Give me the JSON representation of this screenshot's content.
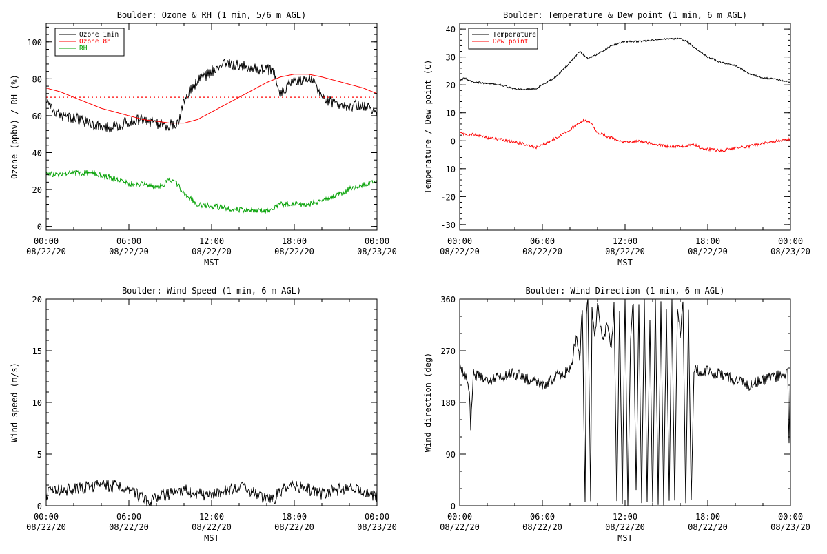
{
  "chart_data": [
    {
      "type": "line",
      "title": "Boulder: Ozone & RH (1 min, 5/6 m AGL)",
      "xlabel": "MST",
      "ylabel": "Ozone (ppbv) / RH (%)",
      "x_unit": "hours since 00:00 08/22/20 MST",
      "xlim": [
        0,
        24
      ],
      "ylim": [
        -2,
        110
      ],
      "y_ticks": [
        0,
        20,
        40,
        60,
        80,
        100
      ],
      "x_ticks": [
        {
          "x": 0,
          "time": "00:00",
          "date": "08/22/20"
        },
        {
          "x": 6,
          "time": "06:00",
          "date": "08/22/20"
        },
        {
          "x": 12,
          "time": "12:00",
          "date": "08/22/20"
        },
        {
          "x": 18,
          "time": "18:00",
          "date": "08/22/20"
        },
        {
          "x": 24,
          "time": "00:00",
          "date": "08/23/20"
        }
      ],
      "legend_position": "top-left",
      "reference_line": {
        "y": 70,
        "color": "#ff0000",
        "style": "dotted"
      },
      "series": [
        {
          "name": "Ozone 1min",
          "color": "#000000",
          "noise": 3,
          "x": [
            0,
            0.5,
            1,
            2,
            3,
            4,
            5,
            6,
            7,
            8,
            8.7,
            9.3,
            9.6,
            10,
            10.5,
            11,
            11.5,
            12,
            12.5,
            13,
            13.5,
            14,
            14.5,
            15,
            15.5,
            16,
            16.5,
            16.8,
            17,
            17.5,
            18,
            18.5,
            19,
            19.5,
            20,
            20.5,
            21,
            21.5,
            22,
            22.5,
            23,
            23.5,
            24
          ],
          "y": [
            68,
            64,
            60,
            59,
            56,
            54,
            54,
            57,
            58,
            56,
            55,
            55,
            56,
            68,
            74,
            79,
            81,
            84,
            86,
            89,
            88,
            87,
            87,
            86,
            85,
            85,
            84,
            74,
            73,
            76,
            78,
            79,
            80,
            79,
            70,
            68,
            66,
            66,
            65,
            66,
            65,
            64,
            62
          ]
        },
        {
          "name": "Ozone 8h",
          "color": "#ff0000",
          "noise": 0,
          "x": [
            0,
            1,
            2,
            3,
            4,
            5,
            6,
            7,
            8,
            9,
            10,
            11,
            12,
            13,
            14,
            15,
            16,
            17,
            18,
            19,
            20,
            21,
            22,
            23,
            24
          ],
          "y": [
            75,
            73,
            70,
            67,
            64,
            62,
            60,
            58,
            57,
            56,
            56,
            58,
            62,
            66,
            70,
            74,
            78,
            81,
            82.5,
            82.5,
            81,
            79,
            77,
            75,
            72
          ]
        },
        {
          "name": "RH",
          "color": "#00a000",
          "noise": 1.5,
          "x": [
            0,
            0.5,
            1,
            2,
            3,
            4,
            5,
            6,
            7,
            8,
            9,
            9.5,
            10,
            10.5,
            11,
            12,
            13,
            14,
            15,
            16,
            16.5,
            17,
            18,
            19,
            20,
            21,
            22,
            23,
            24
          ],
          "y": [
            30,
            28,
            28,
            29,
            29,
            28,
            26,
            23,
            23,
            21,
            25,
            23,
            18,
            15,
            12,
            11,
            10,
            9,
            8.5,
            8.5,
            10,
            12,
            12,
            12,
            14,
            17,
            20,
            23,
            25
          ]
        }
      ]
    },
    {
      "type": "line",
      "title": "Boulder: Temperature & Dew point (1 min, 6 m AGL)",
      "xlabel": "MST",
      "ylabel": "Temperature / Dew point (C)",
      "x_unit": "hours since 00:00 08/22/20 MST",
      "xlim": [
        0,
        24
      ],
      "ylim": [
        -32,
        42
      ],
      "y_ticks": [
        -30,
        -20,
        -10,
        0,
        10,
        20,
        30,
        40
      ],
      "x_ticks": [
        {
          "x": 0,
          "time": "00:00",
          "date": "08/22/20"
        },
        {
          "x": 6,
          "time": "06:00",
          "date": "08/22/20"
        },
        {
          "x": 12,
          "time": "12:00",
          "date": "08/22/20"
        },
        {
          "x": 18,
          "time": "18:00",
          "date": "08/22/20"
        },
        {
          "x": 24,
          "time": "00:00",
          "date": "08/23/20"
        }
      ],
      "legend_position": "top-left",
      "series": [
        {
          "name": "Temperature",
          "color": "#000000",
          "noise": 0.3,
          "x": [
            0,
            0.3,
            1,
            2,
            3,
            4,
            5,
            5.5,
            6,
            7,
            8,
            8.7,
            9.3,
            10,
            11,
            12,
            13,
            14,
            15,
            16,
            16.5,
            17,
            18,
            19,
            20,
            21,
            22,
            23,
            24
          ],
          "y": [
            21,
            22.5,
            21,
            20.5,
            20,
            18.5,
            18.5,
            18.5,
            20,
            23,
            28,
            32,
            29.5,
            31,
            34,
            35.5,
            35.5,
            36,
            36.5,
            36.5,
            35.5,
            33.5,
            30,
            28,
            27,
            24,
            22.5,
            22,
            21
          ]
        },
        {
          "name": "Dew point",
          "color": "#ff0000",
          "noise": 0.5,
          "x": [
            0,
            0.5,
            1,
            2,
            3,
            4,
            5,
            5.5,
            6,
            7,
            8,
            9,
            9.5,
            10,
            11,
            12,
            13,
            14,
            15,
            16,
            17,
            17.5,
            18,
            19,
            20,
            21,
            22,
            23,
            24
          ],
          "y": [
            3,
            2,
            2.5,
            1,
            0.5,
            -0.5,
            -1.5,
            -2.5,
            -1.5,
            1,
            4,
            7.5,
            6.5,
            3,
            1,
            -0.5,
            0,
            -1,
            -2,
            -2,
            -1.5,
            -2.5,
            -3,
            -3.5,
            -2.5,
            -2,
            -1,
            0,
            0.5
          ]
        }
      ]
    },
    {
      "type": "line",
      "title": "Boulder: Wind Speed (1 min, 6 m AGL)",
      "xlabel": "MST",
      "ylabel": "Wind speed (m/s)",
      "x_unit": "hours since 00:00 08/22/20 MST",
      "xlim": [
        0,
        24
      ],
      "ylim": [
        0,
        20
      ],
      "y_ticks": [
        0,
        5,
        10,
        15,
        20
      ],
      "x_ticks": [
        {
          "x": 0,
          "time": "00:00",
          "date": "08/22/20"
        },
        {
          "x": 6,
          "time": "06:00",
          "date": "08/22/20"
        },
        {
          "x": 12,
          "time": "12:00",
          "date": "08/22/20"
        },
        {
          "x": 18,
          "time": "18:00",
          "date": "08/22/20"
        },
        {
          "x": 24,
          "time": "00:00",
          "date": "08/23/20"
        }
      ],
      "series": [
        {
          "color": "#000000",
          "noise": 0.6,
          "x": [
            0,
            1,
            2,
            3,
            4,
            5,
            6,
            7,
            7.5,
            8,
            9,
            10,
            11,
            12,
            13,
            14,
            14.5,
            15,
            16,
            16.5,
            17,
            18,
            19,
            20,
            21,
            22,
            23,
            24
          ],
          "y": [
            1.2,
            1.5,
            1.6,
            1.8,
            2.0,
            1.9,
            1.5,
            0.8,
            0.3,
            0.8,
            1.2,
            1.5,
            1.2,
            1.0,
            1.5,
            1.8,
            1.7,
            1.3,
            0.5,
            0.6,
            1.5,
            1.9,
            1.6,
            1.2,
            1.5,
            1.7,
            1.4,
            0.9
          ]
        }
      ]
    },
    {
      "type": "line",
      "title": "Boulder: Wind Direction (1 min, 6 m AGL)",
      "xlabel": "MST",
      "ylabel": "Wind direction (deg)",
      "x_unit": "hours since 00:00 08/22/20 MST",
      "xlim": [
        0,
        24
      ],
      "ylim": [
        0,
        360
      ],
      "y_ticks": [
        0,
        90,
        180,
        270,
        360
      ],
      "x_ticks": [
        {
          "x": 0,
          "time": "00:00",
          "date": "08/22/20"
        },
        {
          "x": 6,
          "time": "06:00",
          "date": "08/22/20"
        },
        {
          "x": 12,
          "time": "12:00",
          "date": "08/22/20"
        },
        {
          "x": 18,
          "time": "18:00",
          "date": "08/22/20"
        },
        {
          "x": 24,
          "time": "00:00",
          "date": "08/23/20"
        }
      ],
      "series": [
        {
          "color": "#000000",
          "noise": 10,
          "x": [
            0,
            0.5,
            0.7,
            0.8,
            1,
            2,
            3,
            4,
            5,
            6,
            7,
            7.5,
            8,
            8.5,
            8.7,
            8.9,
            9.1,
            9.2,
            9.3,
            9.5,
            9.6,
            9.8,
            10,
            10.3,
            10.5,
            10.7,
            11,
            11.2,
            11.4,
            11.6,
            11.8,
            12,
            12.2,
            12.4,
            12.6,
            12.8,
            13,
            13.2,
            13.4,
            13.6,
            13.8,
            14,
            14.2,
            14.4,
            14.6,
            14.8,
            15,
            15.2,
            15.4,
            15.6,
            15.8,
            16,
            16.2,
            16.4,
            16.6,
            16.8,
            17,
            17.5,
            18,
            18.5,
            19,
            19.5,
            20,
            21,
            22,
            23,
            23.8,
            23.9,
            24
          ],
          "y": [
            250,
            220,
            200,
            140,
            230,
            215,
            225,
            230,
            220,
            210,
            225,
            230,
            235,
            300,
            250,
            350,
            0,
            330,
            360,
            10,
            340,
            290,
            355,
            300,
            290,
            320,
            270,
            350,
            0,
            345,
            10,
            360,
            0,
            290,
            360,
            20,
            345,
            0,
            355,
            10,
            330,
            0,
            360,
            5,
            350,
            0,
            340,
            15,
            360,
            0,
            350,
            300,
            355,
            0,
            345,
            0,
            240,
            235,
            235,
            230,
            230,
            225,
            220,
            210,
            220,
            225,
            230,
            100,
            240
          ]
        }
      ]
    }
  ]
}
